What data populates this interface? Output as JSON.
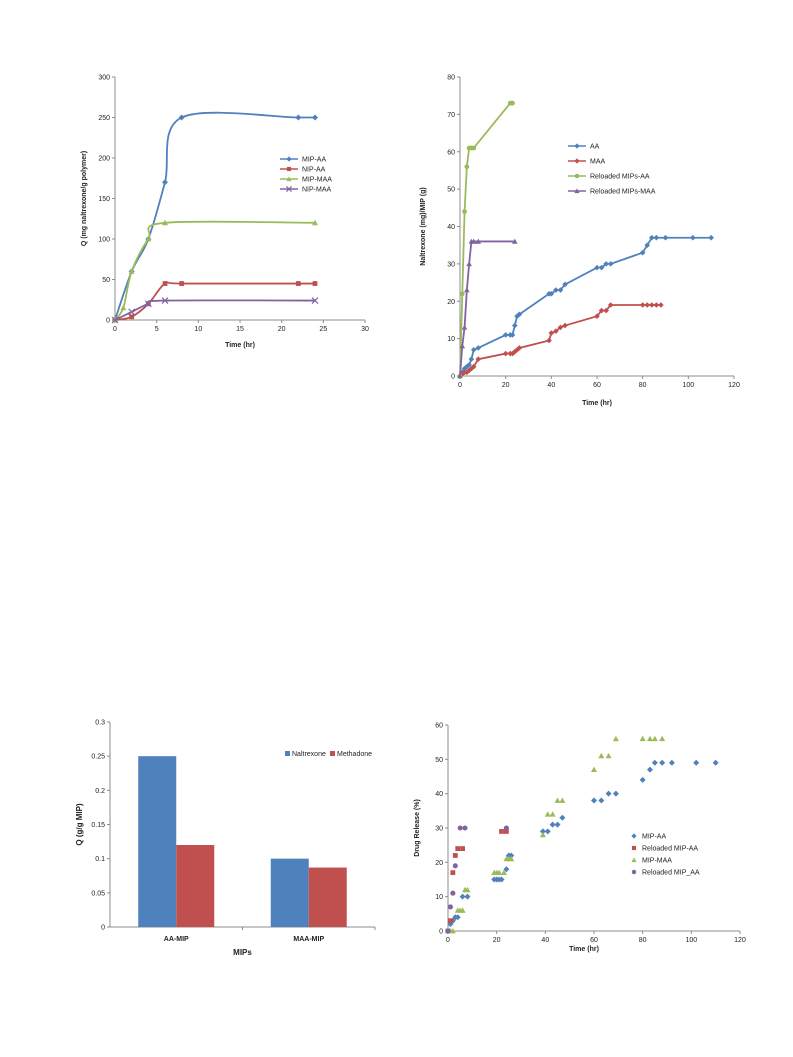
{
  "chart_data": [
    {
      "type": "line",
      "xlabel": "Time (hr)",
      "ylabel": "Q (mg naltrexone/g polymer)",
      "xlim": [
        0,
        30
      ],
      "ylim": [
        0,
        300
      ],
      "xticks": [
        0,
        5,
        10,
        15,
        20,
        25,
        30
      ],
      "yticks": [
        0,
        50,
        100,
        150,
        200,
        250,
        300
      ],
      "grid": false,
      "legend_position": "right",
      "series": [
        {
          "name": "MIP-AA",
          "color": "#4F81BD",
          "marker": "diamond",
          "x": [
            0,
            2,
            4,
            6,
            8,
            22,
            24
          ],
          "y": [
            0,
            60,
            100,
            170,
            250,
            250,
            250
          ]
        },
        {
          "name": "NIP-AA",
          "color": "#C0504D",
          "marker": "square",
          "x": [
            0,
            2,
            4,
            6,
            8,
            22,
            24
          ],
          "y": [
            0,
            4,
            20,
            45,
            45,
            45,
            45
          ]
        },
        {
          "name": "MIP-MAA",
          "color": "#9BBB59",
          "marker": "triangle",
          "x": [
            0,
            1,
            2,
            4,
            6,
            24
          ],
          "y": [
            0,
            15,
            60,
            100,
            120,
            120
          ]
        },
        {
          "name": "NIP-MAA",
          "color": "#8064A2",
          "marker": "x",
          "x": [
            0,
            2,
            4,
            6,
            24
          ],
          "y": [
            0,
            10,
            20,
            24,
            24
          ]
        }
      ]
    },
    {
      "type": "line",
      "xlabel": "Time (hr)",
      "ylabel": "Naltrexone (mg)/MIP (g)",
      "xlim": [
        0,
        120
      ],
      "ylim": [
        0,
        80
      ],
      "xticks": [
        0,
        20,
        40,
        60,
        80,
        100,
        120
      ],
      "yticks": [
        0,
        10,
        20,
        30,
        40,
        50,
        60,
        70,
        80
      ],
      "grid": false,
      "legend_position": "right",
      "series": [
        {
          "name": "AA",
          "color": "#4F81BD",
          "marker": "diamond",
          "x": [
            0,
            1,
            2,
            3,
            4,
            5,
            6,
            8,
            20,
            22,
            23,
            24,
            25,
            26,
            39,
            40,
            42,
            44,
            46,
            60,
            62,
            64,
            66,
            80,
            82,
            84,
            86,
            90,
            102,
            110
          ],
          "y": [
            0,
            1,
            2,
            2.5,
            3,
            4.5,
            7,
            7.5,
            11,
            11,
            11,
            13.5,
            16,
            16.5,
            22,
            22,
            23,
            23,
            24.5,
            29,
            29,
            30,
            30,
            33,
            35,
            37,
            37,
            37,
            37,
            37
          ]
        },
        {
          "name": "MAA",
          "color": "#C0504D",
          "marker": "diamond",
          "x": [
            0,
            1,
            2,
            3,
            4,
            5,
            6,
            8,
            20,
            22,
            23,
            24,
            25,
            26,
            39,
            40,
            42,
            44,
            46,
            60,
            62,
            64,
            66,
            80,
            82,
            84,
            86,
            88
          ],
          "y": [
            0,
            0.5,
            1,
            1,
            1.5,
            2,
            2.5,
            4.5,
            6,
            6,
            6,
            6.5,
            7,
            7.5,
            9.5,
            11.5,
            12,
            13,
            13.5,
            16,
            17.5,
            17.5,
            19,
            19,
            19,
            19,
            19,
            19
          ]
        },
        {
          "name": "Reloaded MIPs-AA",
          "color": "#9BBB59",
          "marker": "circle",
          "x": [
            0,
            1,
            2,
            3,
            4,
            5,
            6,
            22,
            23
          ],
          "y": [
            0,
            22,
            44,
            56,
            61,
            61,
            61,
            73,
            73
          ]
        },
        {
          "name": "Reloaded MIPs-MAA",
          "color": "#8064A2",
          "marker": "triangle",
          "x": [
            0,
            1,
            2,
            3,
            4,
            5,
            6,
            8,
            24
          ],
          "y": [
            0,
            8,
            13,
            23,
            30,
            36,
            36,
            36,
            36
          ]
        }
      ]
    },
    {
      "type": "bar",
      "xlabel": "MIPs",
      "ylabel": "Q (g/g MIP)",
      "ylim": [
        0,
        0.3
      ],
      "yticks": [
        0,
        0.05,
        0.1,
        0.15,
        0.2,
        0.25,
        0.3
      ],
      "ytick_labels": [
        "0",
        "0.05",
        "0.1",
        "0.15",
        "0.2",
        "0.25",
        "0.3"
      ],
      "grid": false,
      "legend_position": "top-right",
      "categories": [
        "AA-MIP",
        "MAA-MIP"
      ],
      "series": [
        {
          "name": "Naltrexone",
          "color": "#4F81BD",
          "values": [
            0.25,
            0.1
          ]
        },
        {
          "name": "Methadone",
          "color": "#C0504D",
          "values": [
            0.12,
            0.087
          ]
        }
      ]
    },
    {
      "type": "scatter",
      "xlabel": "Time (hr)",
      "ylabel": "Drug Release (%)",
      "xlim": [
        0,
        120
      ],
      "ylim": [
        0,
        60
      ],
      "xticks": [
        0,
        20,
        40,
        60,
        80,
        100,
        120
      ],
      "yticks": [
        0,
        10,
        20,
        30,
        40,
        50,
        60
      ],
      "grid": false,
      "legend_position": "right",
      "series": [
        {
          "name": "MIP-AA",
          "color": "#4F81BD",
          "marker": "diamond",
          "x": [
            0,
            1,
            2,
            3,
            4,
            6,
            8,
            19,
            20,
            21,
            22,
            24,
            25,
            26,
            39,
            41,
            43,
            45,
            47,
            60,
            63,
            66,
            69,
            80,
            83,
            85,
            88,
            92,
            102,
            110
          ],
          "y": [
            0,
            2,
            3,
            4,
            4,
            10,
            10,
            15,
            15,
            15,
            15,
            18,
            22,
            22,
            29,
            29,
            31,
            31,
            33,
            38,
            38,
            40,
            40,
            44,
            47,
            49,
            49,
            49,
            49,
            49
          ]
        },
        {
          "name": "Reloaded MIP-AA",
          "color": "#C0504D",
          "marker": "square",
          "x": [
            0,
            1,
            2,
            3,
            4,
            6,
            22,
            24
          ],
          "y": [
            0,
            3,
            17,
            22,
            24,
            24,
            29,
            29
          ]
        },
        {
          "name": "MIP-MAA",
          "color": "#9BBB59",
          "marker": "triangle",
          "x": [
            0,
            1,
            2,
            4,
            5,
            6,
            7,
            8,
            19,
            20,
            21,
            23,
            24,
            25,
            26,
            39,
            41,
            43,
            45,
            47,
            60,
            63,
            66,
            69,
            80,
            83,
            85,
            88
          ],
          "y": [
            0,
            0,
            0,
            6,
            6,
            6,
            12,
            12,
            17,
            17,
            17,
            17,
            21,
            21,
            21,
            28,
            34,
            34,
            38,
            38,
            47,
            51,
            51,
            56,
            56,
            56,
            56,
            56
          ]
        },
        {
          "name": "Reloaded MIP_AA",
          "color": "#8064A2",
          "marker": "circle",
          "x": [
            0,
            1,
            2,
            3,
            5,
            7,
            24
          ],
          "y": [
            0,
            7,
            11,
            19,
            30,
            30,
            30
          ]
        }
      ]
    }
  ]
}
